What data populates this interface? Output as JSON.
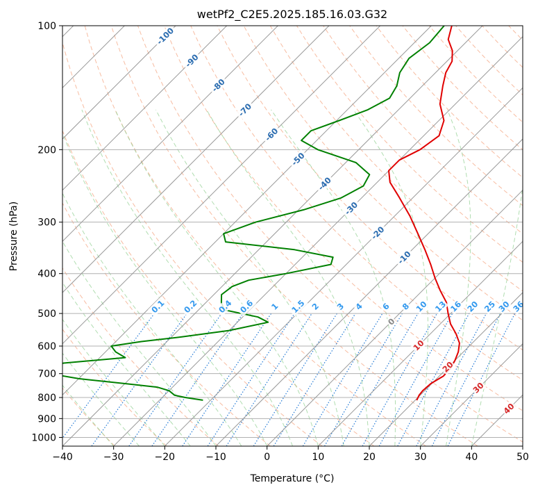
{
  "chart_data": {
    "type": "line",
    "title": "wetPf2_C2E5.2025.185.16.03.G32",
    "xlabel": "Temperature (°C)",
    "ylabel": "Pressure (hPa)",
    "xlim": [
      -40,
      50
    ],
    "ylim": [
      1050,
      100
    ],
    "y_scale": "log",
    "grid": true,
    "x_ticks": [
      "−40",
      "−30",
      "−20",
      "−10",
      "0",
      "10",
      "20",
      "30",
      "40",
      "50"
    ],
    "y_ticks": [
      "100",
      "200",
      "300",
      "400",
      "500",
      "600",
      "700",
      "800",
      "900",
      "1000"
    ],
    "skew_deg": 45,
    "colors": {
      "temperature": "#e00000",
      "dewpoint": "#008000",
      "isotherm": "#999999",
      "dry_adiabat": "#f4a582",
      "moist_adiabat": "#8fcf8f",
      "mixing_ratio": "#1f77d4",
      "isotherm_label": "#2a6cb0",
      "mixing_label": "#3399ee",
      "adiabat_label": "#d62728"
    },
    "isotherm_labels": [
      "-100",
      "-90",
      "-80",
      "-70",
      "-60",
      "-50",
      "-40",
      "-30",
      "-20",
      "-10",
      "0",
      "10",
      "20",
      "30",
      "40"
    ],
    "mixing_ratio_labels": [
      "0.1",
      "0.2",
      "0.4",
      "0.6",
      "1",
      "1.5",
      "2",
      "3",
      "4",
      "6",
      "8",
      "10",
      "13",
      "16",
      "20",
      "25",
      "30",
      "36"
    ],
    "series": [
      {
        "points": [
          {
            "p": 812,
            "t": 20.3
          },
          {
            "p": 790,
            "t": 19.8
          },
          {
            "p": 770,
            "t": 19.6
          },
          {
            "p": 740,
            "t": 19.8
          },
          {
            "p": 710,
            "t": 20.8
          },
          {
            "p": 680,
            "t": 20.7
          },
          {
            "p": 650,
            "t": 20.0
          },
          {
            "p": 620,
            "t": 19.0
          },
          {
            "p": 590,
            "t": 17.5
          },
          {
            "p": 560,
            "t": 15.0
          },
          {
            "p": 530,
            "t": 12.0
          },
          {
            "p": 500,
            "t": 9.5
          },
          {
            "p": 470,
            "t": 7.0
          },
          {
            "p": 440,
            "t": 3.5
          },
          {
            "p": 410,
            "t": 0.0
          },
          {
            "p": 380,
            "t": -3.5
          },
          {
            "p": 350,
            "t": -7.5
          },
          {
            "p": 320,
            "t": -12.0
          },
          {
            "p": 290,
            "t": -17.0
          },
          {
            "p": 260,
            "t": -23.0
          },
          {
            "p": 240,
            "t": -27.5
          },
          {
            "p": 225,
            "t": -30.0
          },
          {
            "p": 212,
            "t": -30.0
          },
          {
            "p": 200,
            "t": -28.0
          },
          {
            "p": 185,
            "t": -27.0
          },
          {
            "p": 170,
            "t": -29.0
          },
          {
            "p": 155,
            "t": -33.0
          },
          {
            "p": 140,
            "t": -36.0
          },
          {
            "p": 130,
            "t": -38.0
          },
          {
            "p": 122,
            "t": -39.0
          },
          {
            "p": 115,
            "t": -41.0
          },
          {
            "p": 108,
            "t": -44.0
          },
          {
            "p": 100,
            "t": -46.0
          }
        ]
      },
      {
        "points": [
          {
            "p": 812,
            "t": -21.5
          },
          {
            "p": 800,
            "t": -25.5
          },
          {
            "p": 790,
            "t": -28.0
          },
          {
            "p": 770,
            "t": -30.0
          },
          {
            "p": 755,
            "t": -33.0
          },
          {
            "p": 740,
            "t": -40.0
          },
          {
            "p": 720,
            "t": -50.0
          },
          {
            "p": 690,
            "t": -60.0
          },
          {
            "p": 660,
            "t": -56.0
          },
          {
            "p": 640,
            "t": -45.0
          },
          {
            "p": 620,
            "t": -48.0
          },
          {
            "p": 600,
            "t": -50.0
          },
          {
            "p": 585,
            "t": -45.0
          },
          {
            "p": 570,
            "t": -38.0
          },
          {
            "p": 550,
            "t": -30.0
          },
          {
            "p": 525,
            "t": -24.0
          },
          {
            "p": 510,
            "t": -27.0
          },
          {
            "p": 490,
            "t": -35.0
          },
          {
            "p": 470,
            "t": -37.0
          },
          {
            "p": 450,
            "t": -38.5
          },
          {
            "p": 430,
            "t": -38.0
          },
          {
            "p": 415,
            "t": -36.0
          },
          {
            "p": 400,
            "t": -30.0
          },
          {
            "p": 380,
            "t": -23.0
          },
          {
            "p": 365,
            "t": -24.0
          },
          {
            "p": 350,
            "t": -33.0
          },
          {
            "p": 335,
            "t": -48.0
          },
          {
            "p": 320,
            "t": -50.0
          },
          {
            "p": 300,
            "t": -46.0
          },
          {
            "p": 280,
            "t": -39.0
          },
          {
            "p": 262,
            "t": -34.0
          },
          {
            "p": 245,
            "t": -32.0
          },
          {
            "p": 230,
            "t": -33.0
          },
          {
            "p": 215,
            "t": -38.0
          },
          {
            "p": 200,
            "t": -48.0
          },
          {
            "p": 190,
            "t": -53.0
          },
          {
            "p": 180,
            "t": -53.0
          },
          {
            "p": 170,
            "t": -49.5
          },
          {
            "p": 160,
            "t": -46.0
          },
          {
            "p": 150,
            "t": -44.0
          },
          {
            "p": 140,
            "t": -45.0
          },
          {
            "p": 130,
            "t": -47.0
          },
          {
            "p": 120,
            "t": -48.0
          },
          {
            "p": 110,
            "t": -47.0
          },
          {
            "p": 100,
            "t": -47.5
          }
        ]
      }
    ]
  }
}
